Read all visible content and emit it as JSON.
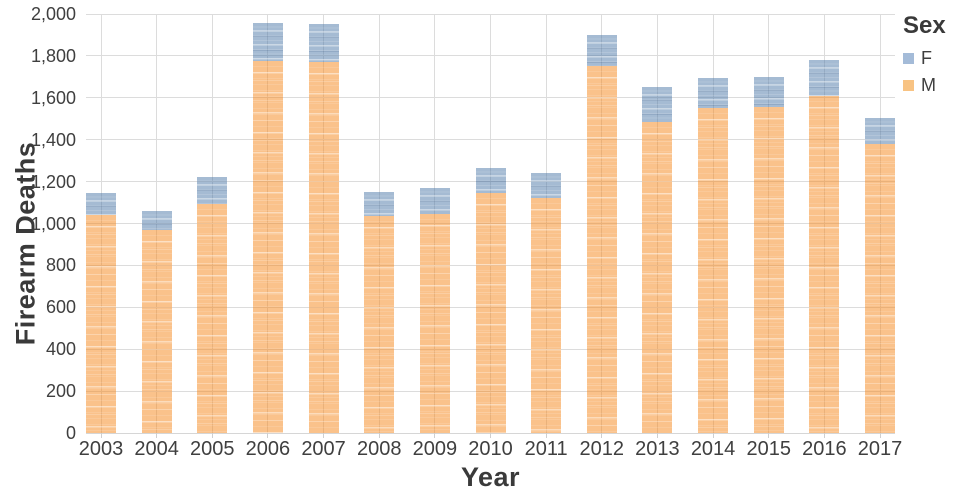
{
  "chart_data": {
    "type": "bar",
    "stacked": true,
    "title": "",
    "xlabel": "Year",
    "ylabel": "Firearm Deaths",
    "ylim": [
      0,
      2000
    ],
    "y_tick_step": 200,
    "y_tick_labels": [
      "0",
      "200",
      "400",
      "600",
      "800",
      "1,000",
      "1,200",
      "1,400",
      "1,600",
      "1,800",
      "2,000"
    ],
    "grid": true,
    "categories": [
      "2003",
      "2004",
      "2005",
      "2006",
      "2007",
      "2008",
      "2009",
      "2010",
      "2011",
      "2012",
      "2013",
      "2014",
      "2015",
      "2016",
      "2017"
    ],
    "series": [
      {
        "name": "M",
        "color": "#f8c383",
        "values": [
          1040,
          970,
          1095,
          1775,
          1770,
          1035,
          1045,
          1145,
          1120,
          1750,
          1485,
          1550,
          1555,
          1610,
          1380
        ]
      },
      {
        "name": "F",
        "color": "#a4bbd8",
        "values": [
          105,
          90,
          125,
          180,
          180,
          115,
          125,
          120,
          120,
          150,
          165,
          145,
          145,
          170,
          125
        ]
      }
    ],
    "totals": [
      1145,
      1060,
      1220,
      1955,
      1950,
      1150,
      1170,
      1265,
      1240,
      1900,
      1650,
      1695,
      1700,
      1780,
      1505
    ],
    "legend": {
      "title": "Sex",
      "position": "top-right",
      "entries": [
        {
          "label": "F",
          "color": "#a4bbd8"
        },
        {
          "label": "M",
          "color": "#f8c383"
        }
      ]
    }
  }
}
